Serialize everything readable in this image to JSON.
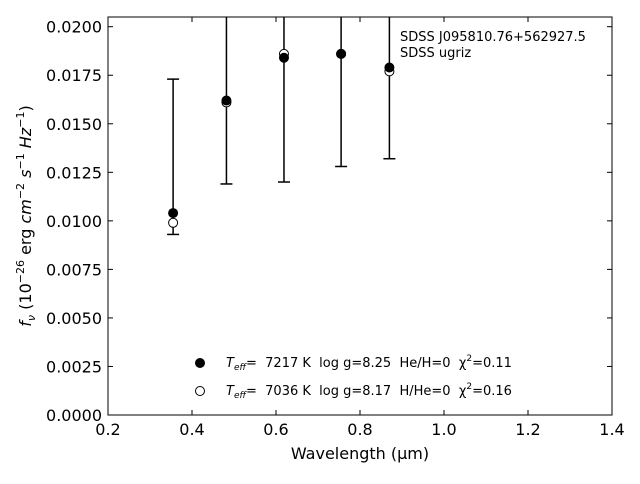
{
  "chart_data": {
    "type": "scatter",
    "xlabel": "Wavelength (μm)",
    "ylabel": "fν (10⁻²⁶ erg cm⁻² s⁻¹ Hz⁻¹)",
    "xlim": [
      0.2,
      1.4
    ],
    "ylim": [
      0.0,
      0.0205
    ],
    "xticks": [
      "0.2",
      "0.4",
      "0.6",
      "0.8",
      "1.0",
      "1.2",
      "1.4"
    ],
    "yticks": [
      "0.0000",
      "0.0025",
      "0.0050",
      "0.0075",
      "0.0100",
      "0.0125",
      "0.0150",
      "0.0175",
      "0.0200"
    ],
    "annotations": [
      "SDSS J095810.76+562927.5",
      "SDSS ugriz"
    ],
    "legend_position": "bottom-center",
    "grid": false,
    "observed": {
      "x": [
        0.355,
        0.482,
        0.619,
        0.755,
        0.87
      ],
      "y": [
        0.0104,
        0.0162,
        0.0184,
        0.0186,
        0.0179
      ],
      "y_low": [
        0.0093,
        0.0119,
        0.012,
        0.0128,
        0.0132
      ],
      "y_high": [
        0.0173,
        0.0205,
        0.0205,
        0.0205,
        0.0205
      ]
    },
    "series": [
      {
        "name": "T_eff= 7217 K log g=8.25 He/H=0 χ²=0.11",
        "legend": {
          "prefix": "T",
          "sub": "eff",
          "body": "=  7217 K  log g=8.25  He/H=0  χ",
          "sup": "2",
          "suffix": "=0.11"
        },
        "marker": "filled-circle",
        "x": [
          0.355,
          0.482,
          0.619,
          0.755,
          0.87
        ],
        "y": [
          0.0104,
          0.0162,
          0.0184,
          0.0186,
          0.0179
        ]
      },
      {
        "name": "T_eff= 7036 K log g=8.17 H/He=0 χ²=0.16",
        "legend": {
          "prefix": "T",
          "sub": "eff",
          "body": "=  7036 K  log g=8.17  H/He=0  χ",
          "sup": "2",
          "suffix": "=0.16"
        },
        "marker": "open-circle",
        "x": [
          0.355,
          0.482,
          0.619,
          0.755,
          0.87
        ],
        "y": [
          0.0099,
          0.0161,
          0.0186,
          0.0186,
          0.0177
        ]
      }
    ]
  }
}
